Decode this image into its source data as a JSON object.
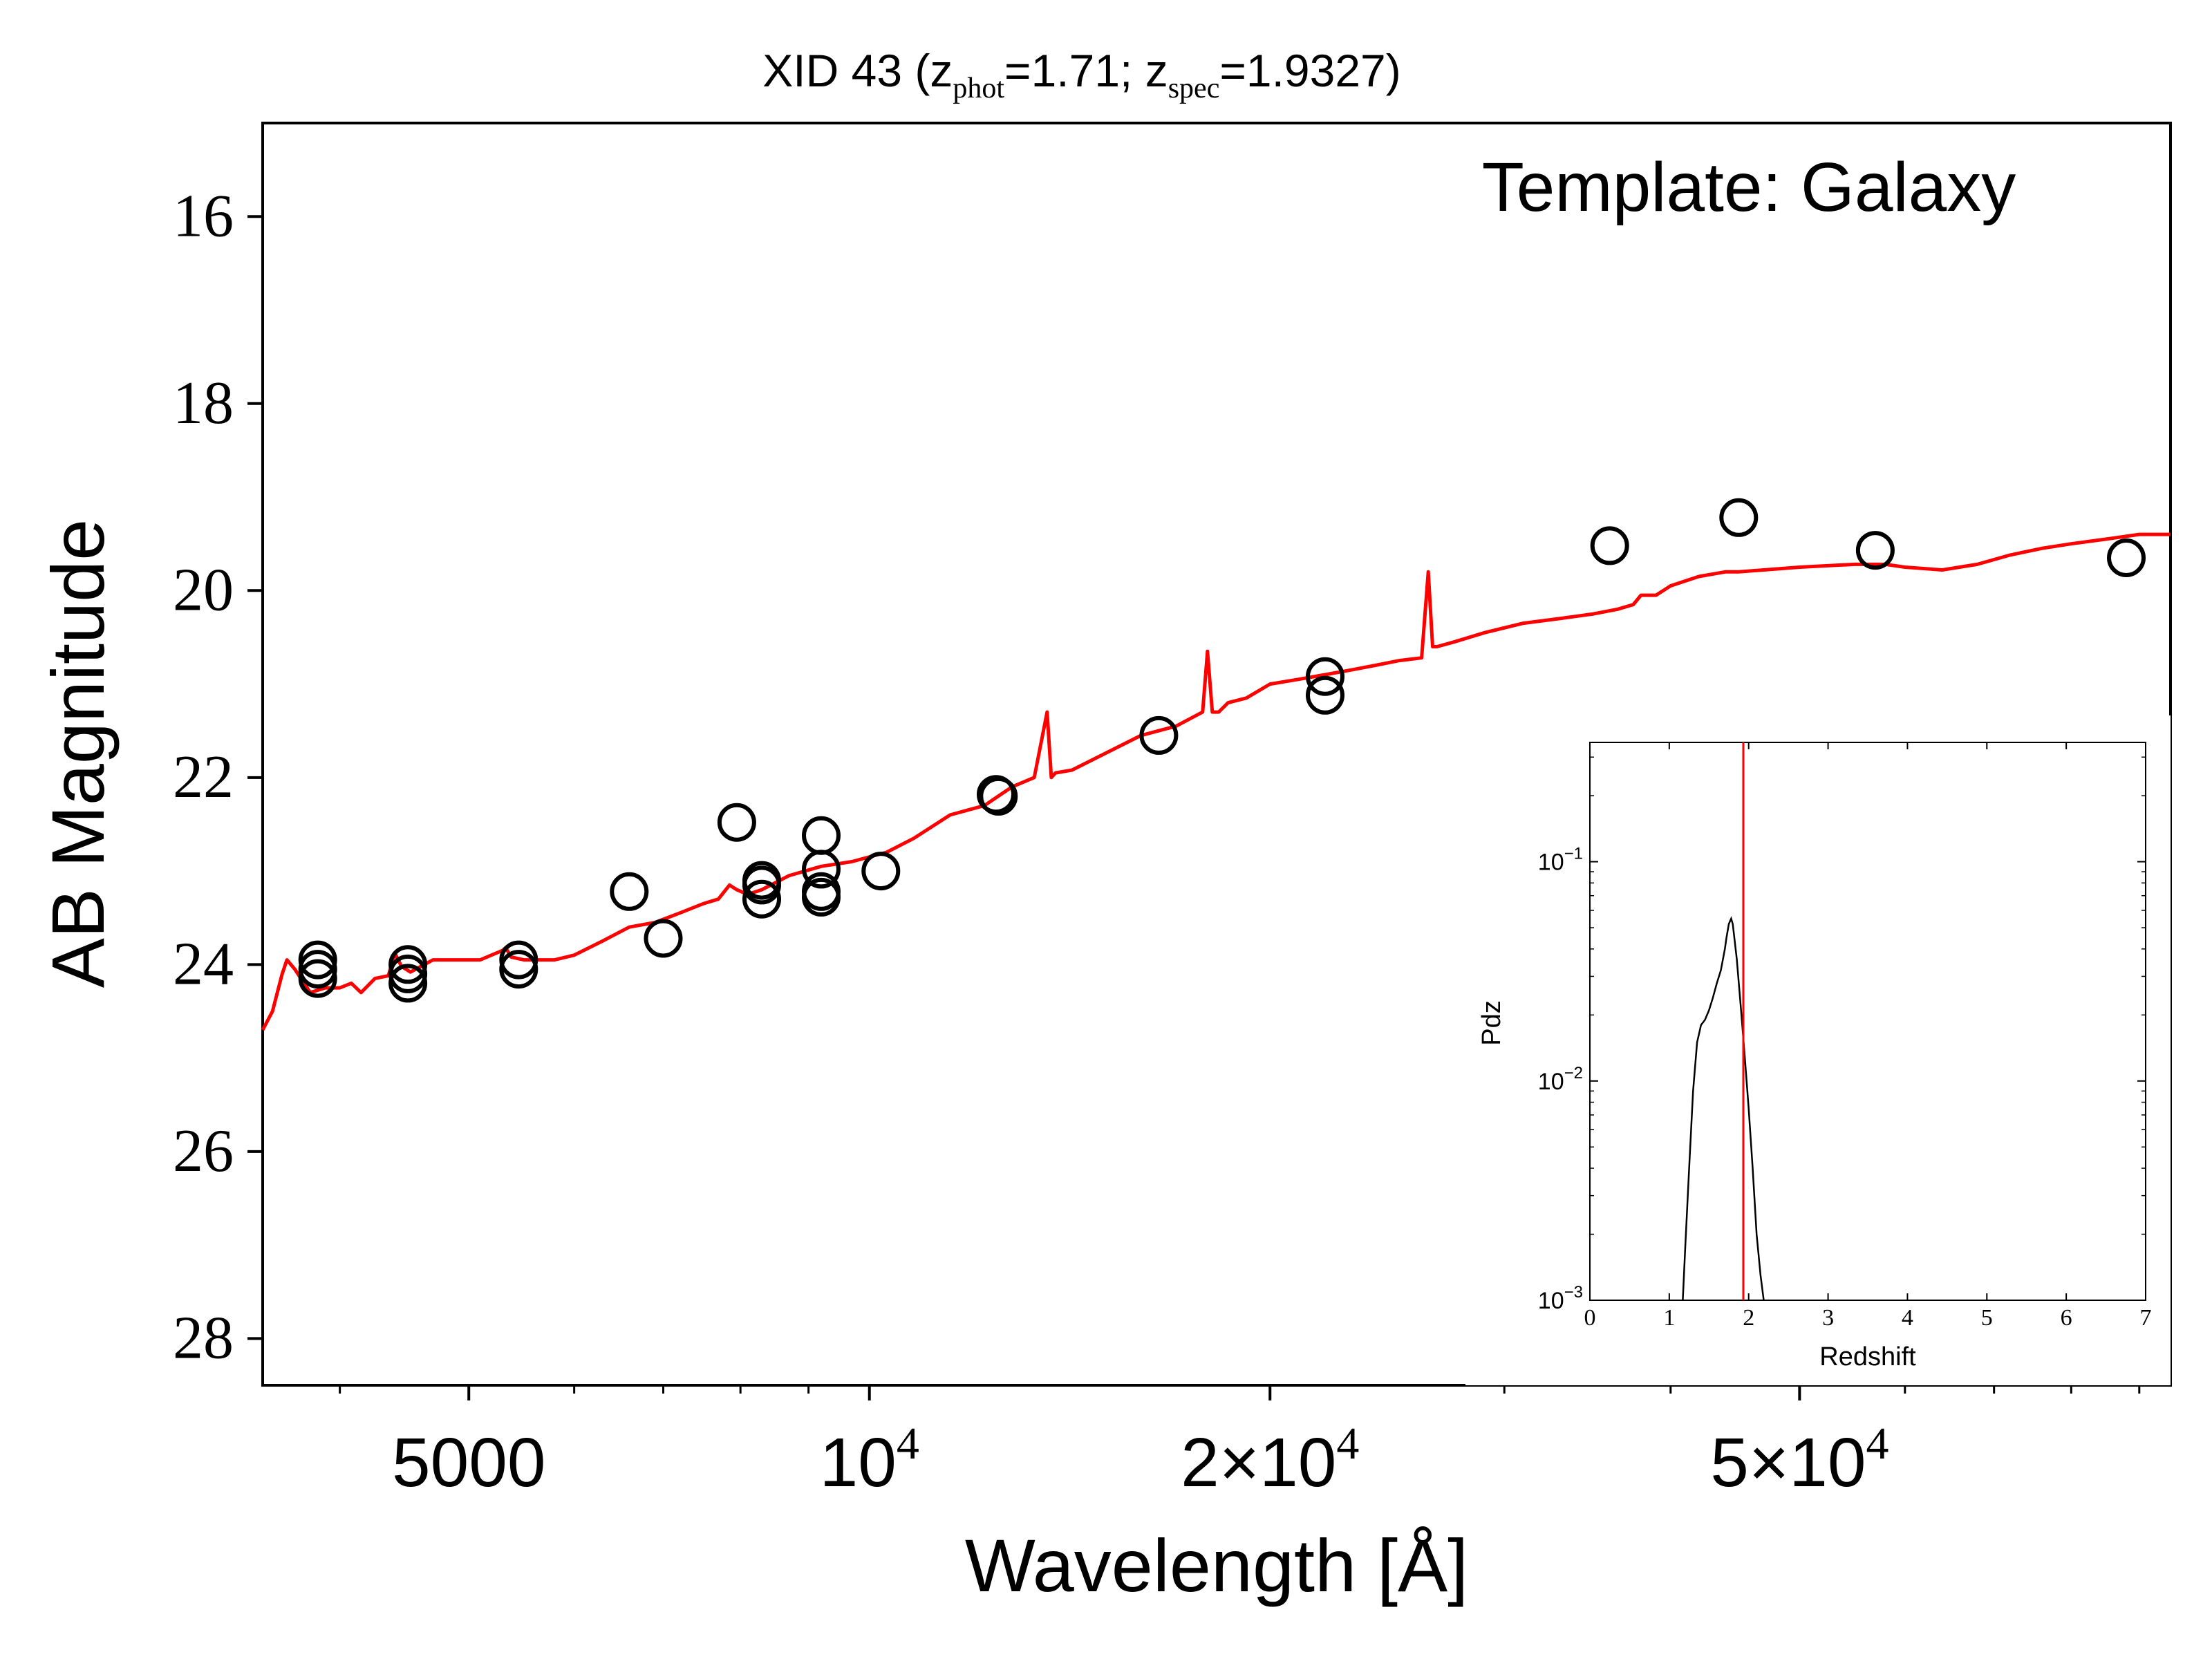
{
  "chart_data": [
    {
      "type": "scatter",
      "title": {
        "prefix": "XID 43 (z",
        "sub1": "phot",
        "mid": "=1.71; z",
        "sub2": "spec",
        "suffix": "=1.9327)"
      },
      "annotation": "Template: Galaxy",
      "xlabel": "Wavelength [Å]",
      "ylabel": "AB Magnitude",
      "xscale": "log",
      "xlim": [
        3500,
        95000
      ],
      "ylim": [
        28.5,
        15.0
      ],
      "x_ticks": [
        {
          "value": 5000,
          "label": "5000"
        },
        {
          "value": 10000,
          "label": "10",
          "sup": "4"
        },
        {
          "value": 20000,
          "label": "2×10",
          "sup": "4"
        },
        {
          "value": 50000,
          "label": "5×10",
          "sup": "4"
        }
      ],
      "y_ticks": [
        {
          "value": 16,
          "label": "16"
        },
        {
          "value": 18,
          "label": "18"
        },
        {
          "value": 20,
          "label": "20"
        },
        {
          "value": 22,
          "label": "22"
        },
        {
          "value": 24,
          "label": "24"
        },
        {
          "value": 26,
          "label": "26"
        },
        {
          "value": 28,
          "label": "28"
        }
      ],
      "grid": false,
      "colors": {
        "observed": "#000000",
        "template": "#ff0000"
      },
      "observed_points": {
        "x": [
          3850,
          3850,
          3850,
          4500,
          4500,
          4500,
          5450,
          5450,
          6600,
          7000,
          7950,
          8300,
          8300,
          8300,
          9200,
          9200,
          9200,
          9200,
          10200,
          12450,
          12500,
          16500,
          22000,
          22000,
          36000,
          45000,
          57000,
          88000
        ],
        "y": [
          23.95,
          24.05,
          24.15,
          24.0,
          24.1,
          24.2,
          23.95,
          24.05,
          23.22,
          23.72,
          22.48,
          23.1,
          23.15,
          23.3,
          22.62,
          22.98,
          23.22,
          23.28,
          23.0,
          22.18,
          22.2,
          21.55,
          20.92,
          21.12,
          19.52,
          19.22,
          19.57,
          19.65
        ]
      },
      "template_fit": {
        "x": [
          3500,
          3560,
          3620,
          3650,
          3700,
          3800,
          3900,
          4000,
          4080,
          4150,
          4250,
          4350,
          4400,
          4450,
          4520,
          4700,
          4900,
          5100,
          5300,
          5330,
          5380,
          5500,
          5800,
          6000,
          6300,
          6600,
          6900,
          7200,
          7500,
          7700,
          7850,
          7950,
          8100,
          8300,
          8700,
          9200,
          9700,
          10300,
          10800,
          11500,
          12200,
          12800,
          13300,
          13600,
          13700,
          13800,
          14200,
          15000,
          16000,
          17000,
          17800,
          17950,
          18100,
          18300,
          18600,
          19200,
          20000,
          21000,
          22000,
          23000,
          24000,
          25000,
          26000,
          26300,
          26500,
          26700,
          27500,
          29000,
          31000,
          33000,
          35000,
          36500,
          37500,
          38000,
          39000,
          40000,
          42000,
          44000,
          45000,
          47000,
          50000,
          55000,
          58000,
          60000,
          64000,
          68000,
          72000,
          76000,
          80000,
          85000,
          90000,
          95000
        ],
        "y": [
          24.7,
          24.5,
          24.1,
          23.95,
          24.05,
          24.3,
          24.25,
          24.25,
          24.2,
          24.3,
          24.15,
          24.12,
          23.88,
          24.02,
          24.08,
          23.95,
          23.95,
          23.95,
          23.85,
          23.82,
          23.92,
          23.95,
          23.95,
          23.9,
          23.75,
          23.6,
          23.55,
          23.45,
          23.35,
          23.3,
          23.15,
          23.2,
          23.25,
          23.2,
          23.05,
          22.95,
          22.9,
          22.8,
          22.65,
          22.4,
          22.3,
          22.1,
          22.0,
          21.3,
          22.0,
          21.95,
          21.92,
          21.75,
          21.55,
          21.45,
          21.3,
          20.65,
          21.3,
          21.3,
          21.2,
          21.15,
          21.0,
          20.95,
          20.9,
          20.85,
          20.8,
          20.75,
          20.72,
          19.8,
          20.6,
          20.6,
          20.55,
          20.45,
          20.35,
          20.3,
          20.25,
          20.2,
          20.15,
          20.05,
          20.05,
          19.95,
          19.85,
          19.8,
          19.8,
          19.78,
          19.75,
          19.72,
          19.72,
          19.75,
          19.78,
          19.72,
          19.62,
          19.55,
          19.5,
          19.45,
          19.4,
          19.4
        ]
      }
    },
    {
      "type": "line",
      "xlabel": "Redshift",
      "ylabel": "Pdz",
      "yscale": "log",
      "xlim": [
        0,
        7
      ],
      "ylim": [
        0.001,
        0.35
      ],
      "x_ticks": [
        "0",
        "1",
        "2",
        "3",
        "4",
        "5",
        "6",
        "7"
      ],
      "y_ticks": [
        {
          "value": 0.001,
          "label": "10",
          "sup": "−3"
        },
        {
          "value": 0.01,
          "label": "10",
          "sup": "−2"
        },
        {
          "value": 0.1,
          "label": "10",
          "sup": "−1"
        }
      ],
      "colors": {
        "pdz": "#000000",
        "zspec_line": "#ff0000"
      },
      "zspec_marker": 1.9327,
      "pdz": {
        "x": [
          1.17,
          1.2,
          1.25,
          1.3,
          1.35,
          1.4,
          1.45,
          1.5,
          1.55,
          1.6,
          1.65,
          1.7,
          1.72,
          1.75,
          1.78,
          1.8,
          1.82,
          1.85,
          1.9,
          1.95,
          2.0,
          2.05,
          2.1,
          2.15,
          2.19
        ],
        "y": [
          0.001,
          0.0017,
          0.004,
          0.009,
          0.015,
          0.018,
          0.019,
          0.021,
          0.024,
          0.028,
          0.032,
          0.04,
          0.045,
          0.052,
          0.055,
          0.052,
          0.045,
          0.036,
          0.022,
          0.013,
          0.0075,
          0.004,
          0.002,
          0.0013,
          0.001
        ]
      }
    }
  ]
}
